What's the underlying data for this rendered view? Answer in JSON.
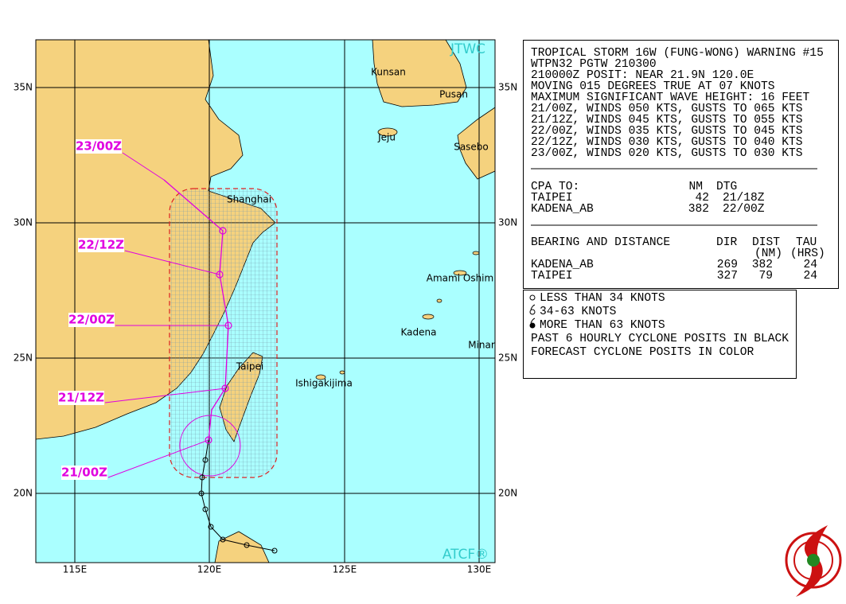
{
  "map": {
    "lat_labels": [
      "35N",
      "30N",
      "25N",
      "20N"
    ],
    "lon_labels": [
      "115E",
      "120E",
      "125E",
      "130E"
    ],
    "agency": "JTWC",
    "software": "ATCF®",
    "places": [
      "Kunsan",
      "Pusan",
      "Jeju",
      "Sasebo",
      "Shanghai",
      "Amami Oshim",
      "Kadena",
      "Minar",
      "Taipei",
      "Ishigakijima"
    ],
    "forecast_labels": [
      "23/00Z",
      "22/12Z",
      "22/00Z",
      "21/12Z",
      "21/00Z"
    ]
  },
  "warning": {
    "lines": [
      "TROPICAL STORM 16W (FUNG-WONG) WARNING #15",
      "WTPN32 PGTW 210300",
      "210000Z POSIT: NEAR 21.9N 120.0E",
      "MOVING 015 DEGREES TRUE AT 07 KNOTS",
      "MAXIMUM SIGNIFICANT WAVE HEIGHT: 16 FEET",
      "21/00Z, WINDS 050 KTS, GUSTS TO 065 KTS",
      "21/12Z, WINDS 045 KTS, GUSTS TO 055 KTS",
      "22/00Z, WINDS 035 KTS, GUSTS TO 045 KTS",
      "22/12Z, WINDS 030 KTS, GUSTS TO 040 KTS",
      "23/00Z, WINDS 020 KTS, GUSTS TO 030 KTS"
    ]
  },
  "cpa": {
    "header": [
      "CPA TO:",
      "NM",
      "DTG"
    ],
    "rows": [
      [
        "TAIPEI",
        "42",
        "21/18Z"
      ],
      [
        "KADENA_AB",
        "382",
        "22/00Z"
      ]
    ]
  },
  "bearing": {
    "header": [
      "BEARING AND DISTANCE",
      "DIR",
      "DIST",
      "TAU"
    ],
    "subheader": [
      "(NM)",
      "(HRS)"
    ],
    "rows": [
      [
        "KADENA_AB",
        "269",
        "382",
        "24"
      ],
      [
        "TAIPEI",
        "327",
        "79",
        "24"
      ]
    ]
  },
  "legend": {
    "items": [
      "LESS THAN 34 KNOTS",
      "34-63 KNOTS",
      "MORE THAN 63 KNOTS"
    ],
    "notes": [
      "PAST 6 HOURLY CYCLONE POSITS IN BLACK",
      "FORECAST CYCLONE POSITS IN COLOR"
    ]
  }
}
